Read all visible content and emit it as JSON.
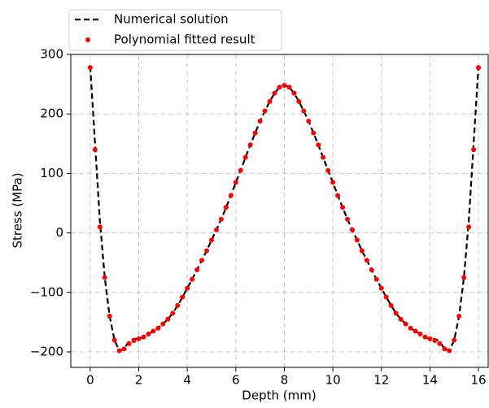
{
  "chart_data": {
    "type": "line_scatter",
    "xlabel": "Depth (mm)",
    "ylabel": "Stress (MPa)",
    "xlim": [
      -0.8,
      16.4
    ],
    "ylim": [
      -226,
      300
    ],
    "xticks": [
      0,
      2,
      4,
      6,
      8,
      10,
      12,
      14,
      16
    ],
    "yticks": [
      {
        "value": -200,
        "label": "−200"
      },
      {
        "value": -100,
        "label": "−100"
      },
      0,
      100,
      200,
      300
    ],
    "grid": true,
    "legend": "upper-left",
    "series": [
      {
        "name": "Numerical solution",
        "color": "#000000",
        "style": "dashed",
        "x": [
          0,
          0.2,
          0.4,
          0.6,
          0.8,
          1,
          1.2,
          1.4,
          1.6,
          1.8,
          2,
          2.2,
          2.4,
          2.6,
          2.8,
          3,
          3.2,
          3.4,
          3.6,
          3.8,
          4,
          4.2,
          4.4,
          4.6,
          4.8,
          5,
          5.2,
          5.4,
          5.6,
          5.8,
          6,
          6.2,
          6.4,
          6.6,
          6.8,
          7,
          7.2,
          7.4,
          7.6,
          7.8,
          8,
          8.2,
          8.4,
          8.6,
          8.8,
          9,
          9.2,
          9.4,
          9.6,
          9.8,
          10,
          10.2,
          10.4,
          10.6,
          10.8,
          11,
          11.2,
          11.4,
          11.6,
          11.8,
          12,
          12.2,
          12.4,
          12.6,
          12.8,
          13,
          13.2,
          13.4,
          13.6,
          13.8,
          14,
          14.2,
          14.4,
          14.6,
          14.8,
          15,
          15.2,
          15.4,
          15.6,
          15.8,
          16
        ],
        "values": [
          280,
          150,
          20,
          -75,
          -140,
          -180,
          -198,
          -195,
          -182,
          -178,
          -178,
          -175,
          -170,
          -165,
          -160,
          -153,
          -145,
          -135,
          -122,
          -108,
          -93,
          -78,
          -62,
          -46,
          -30,
          -12,
          5,
          23,
          43,
          63,
          85,
          105,
          127,
          148,
          168,
          188,
          205,
          221,
          235,
          245,
          248,
          245,
          235,
          221,
          205,
          188,
          168,
          148,
          127,
          105,
          85,
          63,
          43,
          23,
          5,
          -12,
          -30,
          -46,
          -62,
          -78,
          -93,
          -108,
          -122,
          -135,
          -145,
          -153,
          -160,
          -165,
          -170,
          -175,
          -178,
          -178,
          -182,
          -195,
          -198,
          -180,
          -140,
          -75,
          20,
          150,
          280
        ]
      },
      {
        "name": "Polynomial fitted result",
        "color": "#ff0000",
        "style": "dots",
        "x": [
          0,
          0.2,
          0.4,
          0.6,
          0.8,
          1,
          1.2,
          1.4,
          1.6,
          1.8,
          2,
          2.2,
          2.4,
          2.6,
          2.8,
          3,
          3.2,
          3.4,
          3.6,
          3.8,
          4,
          4.2,
          4.4,
          4.6,
          4.8,
          5,
          5.2,
          5.4,
          5.6,
          5.8,
          6,
          6.2,
          6.4,
          6.6,
          6.8,
          7,
          7.2,
          7.4,
          7.6,
          7.8,
          8,
          8.2,
          8.4,
          8.6,
          8.8,
          9,
          9.2,
          9.4,
          9.6,
          9.8,
          10,
          10.2,
          10.4,
          10.6,
          10.8,
          11,
          11.2,
          11.4,
          11.6,
          11.8,
          12,
          12.2,
          12.4,
          12.6,
          12.8,
          13,
          13.2,
          13.4,
          13.6,
          13.8,
          14,
          14.2,
          14.4,
          14.6,
          14.8,
          15,
          15.2,
          15.4,
          15.6,
          15.8,
          16
        ],
        "values": [
          278,
          140,
          10,
          -75,
          -140,
          -180,
          -198,
          -195,
          -186,
          -181,
          -178,
          -175,
          -170,
          -165,
          -160,
          -153,
          -145,
          -135,
          -122,
          -108,
          -93,
          -78,
          -62,
          -46,
          -30,
          -12,
          5,
          23,
          43,
          63,
          85,
          105,
          127,
          148,
          168,
          188,
          205,
          221,
          235,
          245,
          248,
          245,
          235,
          221,
          205,
          188,
          168,
          148,
          127,
          105,
          85,
          63,
          43,
          23,
          5,
          -12,
          -30,
          -46,
          -62,
          -78,
          -93,
          -108,
          -122,
          -135,
          -145,
          -153,
          -160,
          -165,
          -170,
          -175,
          -178,
          -181,
          -186,
          -195,
          -198,
          -180,
          -140,
          -75,
          10,
          140,
          278
        ]
      }
    ]
  }
}
